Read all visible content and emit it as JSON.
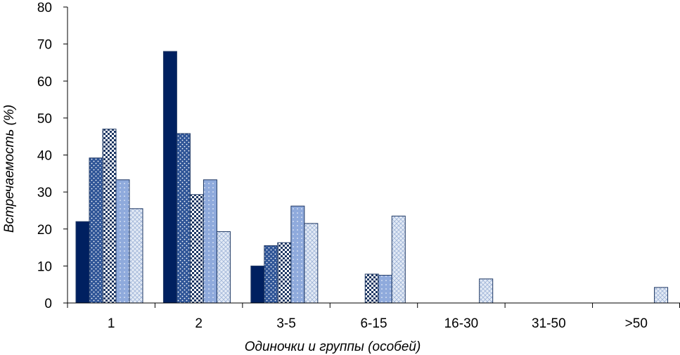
{
  "chart_data": {
    "type": "bar",
    "title": "",
    "xlabel": "Одиночки и группы (особей)",
    "ylabel": "Встречаемость (%)",
    "ylim": [
      0,
      80
    ],
    "yticks": [
      0,
      10,
      20,
      30,
      40,
      50,
      60,
      70,
      80
    ],
    "categories": [
      "1",
      "2",
      "3-5",
      "6-15",
      "16-30",
      "31-50",
      ">50"
    ],
    "grid": false,
    "legend": "none",
    "series": [
      {
        "values": [
          22,
          68,
          10,
          0,
          0,
          0,
          0
        ],
        "color": "#002060",
        "pattern": "solid"
      },
      {
        "values": [
          39.2,
          45.8,
          15.5,
          0,
          0,
          0,
          0
        ],
        "color": "#2f5597",
        "pattern": "dots"
      },
      {
        "values": [
          47,
          29.3,
          16.3,
          7.8,
          0,
          0,
          0
        ],
        "color": "#1f3864",
        "pattern": "checker"
      },
      {
        "values": [
          33.3,
          33.3,
          26.2,
          7.5,
          0,
          0,
          0
        ],
        "color": "#8faadc",
        "pattern": "light-dots"
      },
      {
        "values": [
          25.5,
          19.3,
          21.5,
          23.5,
          6.5,
          0,
          4.2
        ],
        "color": "#c9d6ec",
        "pattern": "lattice"
      }
    ]
  }
}
